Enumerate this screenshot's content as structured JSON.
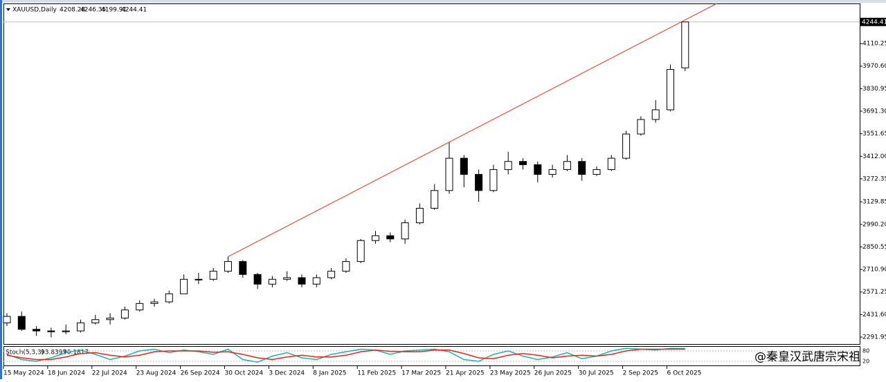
{
  "chart_data": {
    "type": "candlestick",
    "header": {
      "symbol": "XAUUSD,Daily",
      "open": 4208.28,
      "low": 4199.91
    },
    "categories": [
      "15 May 2024",
      null,
      null,
      "18 Jun 2024",
      null,
      null,
      "22 Jul 2024",
      null,
      null,
      "23 Aug 2024",
      null,
      null,
      "26 Sep 2024",
      null,
      null,
      "30 Oct 2024",
      null,
      null,
      "3 Dec 2024",
      null,
      null,
      "8 Jan 2025",
      null,
      null,
      "11 Feb 2025",
      null,
      null,
      "17 Mar 2025",
      null,
      null,
      "21 Apr 2025",
      null,
      null,
      "23 May 2025",
      null,
      null,
      "26 Jun 2025",
      null,
      null,
      "30 Jul 2025",
      null,
      null,
      "2 Sep 2025",
      null,
      null,
      "6 Oct 2025",
      null
    ],
    "open": [
      2380,
      2420,
      2340,
      2330,
      2325,
      2330,
      2380,
      2400,
      2410,
      2460,
      2500,
      2510,
      2560,
      2650,
      2650,
      2700,
      2760,
      2680,
      2620,
      2650,
      2660,
      2620,
      2660,
      2700,
      2760,
      2890,
      2920,
      2900,
      3000,
      3090,
      3200,
      3400,
      3300,
      3200,
      3330,
      3380,
      3360,
      3300,
      3330,
      3380,
      3300,
      3330,
      3400,
      3550,
      3640,
      3700,
      3960
    ],
    "high": [
      2440,
      2450,
      2360,
      2350,
      2370,
      2400,
      2430,
      2440,
      2480,
      2520,
      2530,
      2580,
      2680,
      2690,
      2720,
      2790,
      2770,
      2690,
      2670,
      2700,
      2680,
      2680,
      2720,
      2780,
      2900,
      2950,
      2940,
      3020,
      3120,
      3240,
      3500,
      3420,
      3330,
      3360,
      3440,
      3400,
      3380,
      3360,
      3420,
      3400,
      3350,
      3420,
      3570,
      3660,
      3760,
      3980,
      4246.35
    ],
    "low": [
      2360,
      2330,
      2300,
      2290,
      2310,
      2320,
      2370,
      2370,
      2400,
      2450,
      2480,
      2500,
      2560,
      2620,
      2640,
      2690,
      2660,
      2590,
      2600,
      2640,
      2600,
      2600,
      2650,
      2690,
      2750,
      2870,
      2880,
      2870,
      2990,
      3080,
      3180,
      3220,
      3130,
      3190,
      3300,
      3330,
      3250,
      3280,
      3320,
      3260,
      3290,
      3320,
      3390,
      3540,
      3620,
      3690,
      3940
    ],
    "close": [
      2420,
      2340,
      2330,
      2325,
      2330,
      2380,
      2400,
      2410,
      2460,
      2500,
      2510,
      2560,
      2650,
      2650,
      2700,
      2760,
      2680,
      2620,
      2650,
      2660,
      2620,
      2660,
      2700,
      2760,
      2890,
      2920,
      2900,
      3000,
      3090,
      3200,
      3400,
      3300,
      3200,
      3330,
      3380,
      3360,
      3300,
      3330,
      3380,
      3300,
      3330,
      3400,
      3550,
      3640,
      3700,
      3950,
      4244.41
    ],
    "ylim": [
      2249,
      4359
    ],
    "yticks": [
      4110.25,
      {
        "value": 3970.6,
        "label": "3970.60"
      },
      3830.95,
      {
        "value": 3691.3,
        "label": "3691.30"
      },
      3551.65,
      {
        "value": 3412,
        "label": "3412.00"
      },
      3272.35,
      3129.85,
      {
        "value": 2990.2,
        "label": "2990.20"
      },
      2850.55,
      {
        "value": 2710.9,
        "label": "2710.90"
      },
      2571.25,
      {
        "value": 2431.6,
        "label": "2431.60"
      },
      2291.95
    ],
    "bull_color": "#ffffff",
    "bear_color": "#000000",
    "trendline": {
      "from": 2790,
      "to": 3500,
      "color": "#ff2a1a"
    },
    "stochastic": {
      "type": "line",
      "label": "Stoch(5,3,3)",
      "ylim": [
        0,
        100
      ],
      "yticks": [
        80,
        20
      ],
      "series": [
        {
          "color": "#20b2aa",
          "values": [
            60,
            30,
            20,
            40,
            70,
            85,
            60,
            30,
            50,
            80,
            90,
            70,
            85,
            75,
            60,
            90,
            30,
            15,
            50,
            70,
            40,
            30,
            60,
            75,
            90,
            85,
            60,
            80,
            85,
            90,
            75,
            30,
            20,
            60,
            80,
            50,
            30,
            45,
            70,
            35,
            50,
            80,
            95,
            90,
            85,
            95,
            93.8397
          ]
        },
        {
          "color": "#e8241b",
          "values": [
            55,
            40,
            30,
            30,
            45,
            65,
            70,
            55,
            45,
            55,
            75,
            80,
            80,
            80,
            72,
            75,
            60,
            40,
            30,
            45,
            55,
            45,
            45,
            55,
            75,
            85,
            78,
            75,
            75,
            85,
            85,
            65,
            40,
            35,
            55,
            65,
            55,
            40,
            50,
            55,
            50,
            60,
            80,
            90,
            90,
            90,
            90.1817
          ]
        }
      ]
    },
    "watermark": "@秦皇汉武唐宗宋祖"
  }
}
